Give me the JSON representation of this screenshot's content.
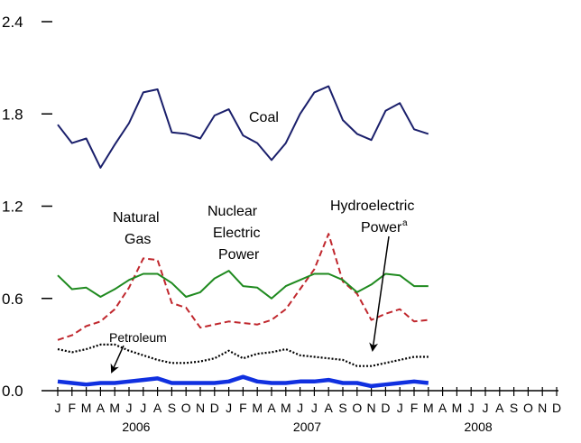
{
  "chart_data": {
    "type": "line",
    "title": "",
    "xlabel": "",
    "ylabel": "",
    "ylim": [
      0,
      2.4
    ],
    "y_ticks": [
      "0.0",
      "0.6",
      "1.2",
      "1.8",
      "2.4"
    ],
    "y_tick_values": [
      0,
      0.6,
      1.2,
      1.8,
      2.4
    ],
    "grid": false,
    "month_labels": [
      "J",
      "F",
      "M",
      "A",
      "M",
      "J",
      "J",
      "A",
      "S",
      "O",
      "N",
      "D",
      "J",
      "F",
      "M",
      "A",
      "M",
      "J",
      "J",
      "A",
      "S",
      "O",
      "N",
      "D",
      "J",
      "F",
      "M",
      "A",
      "M",
      "J",
      "J",
      "A",
      "S",
      "O",
      "N",
      "D"
    ],
    "years": [
      "2006",
      "2007",
      "2008"
    ],
    "series": [
      {
        "name": "Coal",
        "color": "#1a1f6b",
        "style": "solid",
        "values": [
          1.73,
          1.61,
          1.64,
          1.45,
          1.6,
          1.74,
          1.94,
          1.96,
          1.68,
          1.67,
          1.64,
          1.79,
          1.83,
          1.66,
          1.61,
          1.5,
          1.61,
          1.8,
          1.94,
          1.98,
          1.76,
          1.67,
          1.63,
          1.82,
          1.87,
          1.7,
          1.67
        ]
      },
      {
        "name": "Natural Gas",
        "color": "#c0272d",
        "style": "dashed",
        "values": [
          0.33,
          0.36,
          0.42,
          0.45,
          0.53,
          0.67,
          0.86,
          0.85,
          0.57,
          0.54,
          0.41,
          0.43,
          0.45,
          0.44,
          0.43,
          0.46,
          0.53,
          0.66,
          0.79,
          1.02,
          0.71,
          0.63,
          0.46,
          0.5,
          0.53,
          0.45,
          0.46
        ]
      },
      {
        "name": "Nuclear Electric Power",
        "color": "#1f8a1f",
        "style": "solid",
        "values": [
          0.75,
          0.66,
          0.67,
          0.61,
          0.66,
          0.72,
          0.76,
          0.76,
          0.7,
          0.61,
          0.64,
          0.73,
          0.78,
          0.68,
          0.67,
          0.6,
          0.68,
          0.72,
          0.76,
          0.76,
          0.72,
          0.64,
          0.69,
          0.76,
          0.75,
          0.68,
          0.68
        ]
      },
      {
        "name": "Petroleum",
        "color": "#000000",
        "style": "dotted",
        "values": [
          0.27,
          0.25,
          0.27,
          0.3,
          0.3,
          0.26,
          0.23,
          0.2,
          0.18,
          0.18,
          0.19,
          0.21,
          0.26,
          0.21,
          0.24,
          0.25,
          0.27,
          0.23,
          0.22,
          0.21,
          0.2,
          0.16,
          0.16,
          0.18,
          0.2,
          0.22,
          0.22
        ]
      },
      {
        "name": "Hydroelectric Power",
        "color": "#1030e0",
        "style": "thick",
        "values": [
          0.06,
          0.05,
          0.04,
          0.05,
          0.05,
          0.06,
          0.07,
          0.08,
          0.05,
          0.05,
          0.05,
          0.05,
          0.06,
          0.09,
          0.06,
          0.05,
          0.05,
          0.06,
          0.06,
          0.07,
          0.05,
          0.05,
          0.03,
          0.04,
          0.05,
          0.06,
          0.05
        ]
      }
    ],
    "annotations": {
      "coal": "Coal",
      "natural_gas_line1": "Natural",
      "natural_gas_line2": "Gas",
      "nuclear_line1": "Nuclear",
      "nuclear_line2": "Electric",
      "nuclear_line3": "Power",
      "hydro_line1": "Hydroelectric",
      "hydro_line2": "Power",
      "hydro_superscript": "a",
      "petroleum": "Petroleum"
    }
  }
}
